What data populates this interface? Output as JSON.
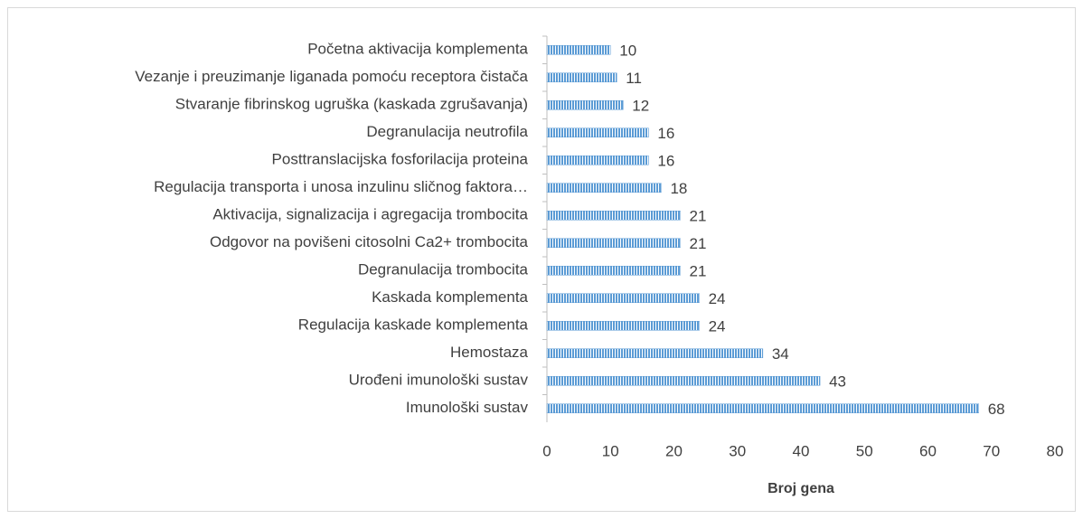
{
  "chart_data": {
    "type": "bar",
    "orientation": "horizontal",
    "categories": [
      "Početna aktivacija komplementa",
      "Vezanje i preuzimanje liganada pomoću receptora čistača",
      "Stvaranje fibrinskog ugruška (kaskada zgrušavanja)",
      "Degranulacija neutrofila",
      "Posttranslacijska fosforilacija proteina",
      "Regulacija transporta i unosa inzulinu sličnog faktora…",
      "Aktivacija, signalizacija i agregacija trombocita",
      "Odgovor na povišeni citosolni Ca2+ trombocita",
      "Degranulacija trombocita",
      "Kaskada komplementa",
      "Regulacija kaskade komplementa",
      "Hemostaza",
      "Urođeni imunološki sustav",
      "Imunološki sustav"
    ],
    "values": [
      10,
      11,
      12,
      16,
      16,
      18,
      21,
      21,
      21,
      24,
      24,
      34,
      43,
      68
    ],
    "color": "#5b9bd5",
    "xlabel": "Broj gena",
    "xlim": [
      0,
      80
    ],
    "xticks": [
      0,
      10,
      20,
      30,
      40,
      50,
      60,
      70,
      80
    ],
    "grid": false
  }
}
